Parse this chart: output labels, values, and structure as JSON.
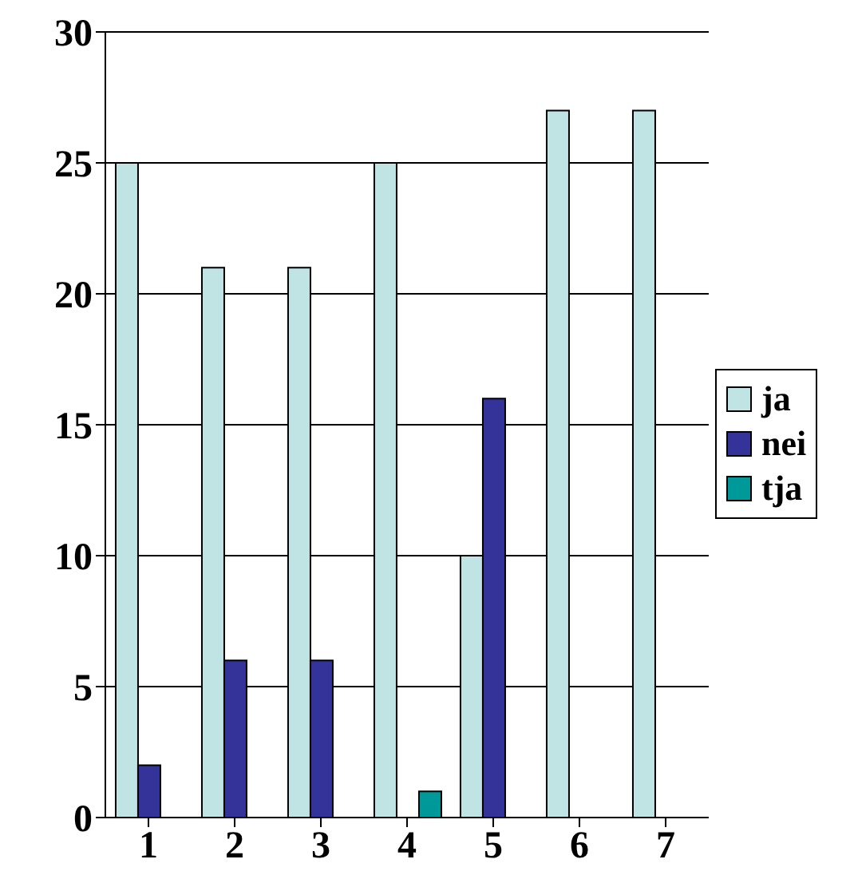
{
  "chart_data": {
    "type": "bar",
    "categories": [
      "1",
      "2",
      "3",
      "4",
      "5",
      "6",
      "7"
    ],
    "series": [
      {
        "name": "ja",
        "color": "#c0e4e4",
        "values": [
          25,
          21,
          21,
          25,
          10,
          27,
          27
        ]
      },
      {
        "name": "nei",
        "color": "#333399",
        "values": [
          2,
          6,
          6,
          0,
          16,
          0,
          0
        ]
      },
      {
        "name": "tja",
        "color": "#009999",
        "values": [
          0,
          0,
          0,
          1,
          0,
          0,
          0
        ]
      }
    ],
    "ylim": [
      0,
      30
    ],
    "yticks": [
      0,
      5,
      10,
      15,
      20,
      25,
      30
    ],
    "grid": "y",
    "legend": "right"
  }
}
